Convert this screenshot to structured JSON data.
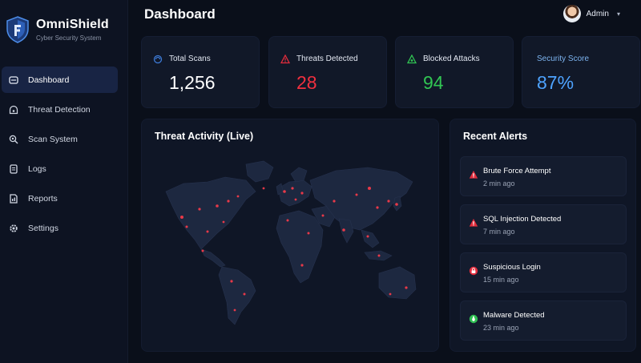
{
  "brand": {
    "name": "OmniShield",
    "subtitle": "Cyber Security System"
  },
  "nav": [
    {
      "label": "Dashboard",
      "icon": "home-icon",
      "active": true
    },
    {
      "label": "Threat Detection",
      "icon": "radar-icon"
    },
    {
      "label": "Scan System",
      "icon": "search-icon"
    },
    {
      "label": "Logs",
      "icon": "document-icon"
    },
    {
      "label": "Reports",
      "icon": "report-icon"
    },
    {
      "label": "Settings",
      "icon": "gear-icon"
    }
  ],
  "header": {
    "title": "Dashboard",
    "user": "Admin"
  },
  "stats": [
    {
      "label": "Total Scans",
      "value": "1,256",
      "icon": "scan-icon",
      "color": "#ffffff"
    },
    {
      "label": "Threats Detected",
      "value": "28",
      "icon": "warning-icon",
      "color": "#f0303f"
    },
    {
      "label": "Blocked Attacks",
      "value": "94",
      "icon": "shield-block-icon",
      "color": "#31c553"
    },
    {
      "label": "Security Score",
      "value": "87%",
      "icon": "",
      "color": "#4ea3ff"
    }
  ],
  "map": {
    "title": "Threat Activity (Live)"
  },
  "alerts": {
    "title": "Recent Alerts",
    "items": [
      {
        "title": "Brute Force Attempt",
        "time": "2 min ago",
        "color": "#e22c3c",
        "icon": "warning-icon"
      },
      {
        "title": "SQL Injection Detected",
        "time": "7 min ago",
        "color": "#e22c3c",
        "icon": "warning-icon"
      },
      {
        "title": "Suspicious Login",
        "time": "15 min ago",
        "color": "#e22c3c",
        "icon": "lock-icon"
      },
      {
        "title": "Malware Detected",
        "time": "23 min ago",
        "color": "#2fbf52",
        "icon": "bug-icon"
      }
    ]
  },
  "colors": {
    "accent": "#4ea3ff",
    "danger": "#f0303f",
    "success": "#31c553",
    "background": "#0a0f1a"
  }
}
